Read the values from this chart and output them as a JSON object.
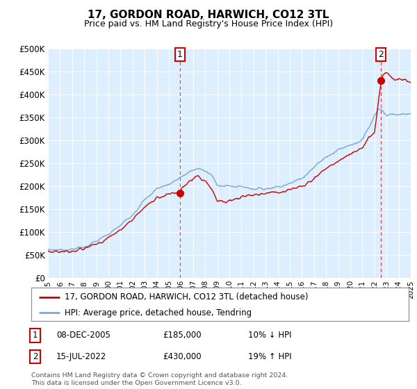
{
  "title": "17, GORDON ROAD, HARWICH, CO12 3TL",
  "subtitle": "Price paid vs. HM Land Registry's House Price Index (HPI)",
  "legend_line1": "17, GORDON ROAD, HARWICH, CO12 3TL (detached house)",
  "legend_line2": "HPI: Average price, detached house, Tendring",
  "footer": "Contains HM Land Registry data © Crown copyright and database right 2024.\nThis data is licensed under the Open Government Licence v3.0.",
  "annotation1_date": "08-DEC-2005",
  "annotation1_price": "£185,000",
  "annotation1_hpi": "10% ↓ HPI",
  "annotation2_date": "15-JUL-2022",
  "annotation2_price": "£430,000",
  "annotation2_hpi": "19% ↑ HPI",
  "ylim": [
    0,
    500000
  ],
  "yticks": [
    0,
    50000,
    100000,
    150000,
    200000,
    250000,
    300000,
    350000,
    400000,
    450000,
    500000
  ],
  "plot_bg_color": "#ddeeff",
  "red_color": "#cc0000",
  "blue_color": "#6699cc",
  "sale1_x": 2005.92,
  "sale1_y": 185000,
  "sale2_x": 2022.54,
  "sale2_y": 430000,
  "vline1_x": 2005.92,
  "vline2_x": 2022.54,
  "xmin": 1995,
  "xmax": 2025
}
